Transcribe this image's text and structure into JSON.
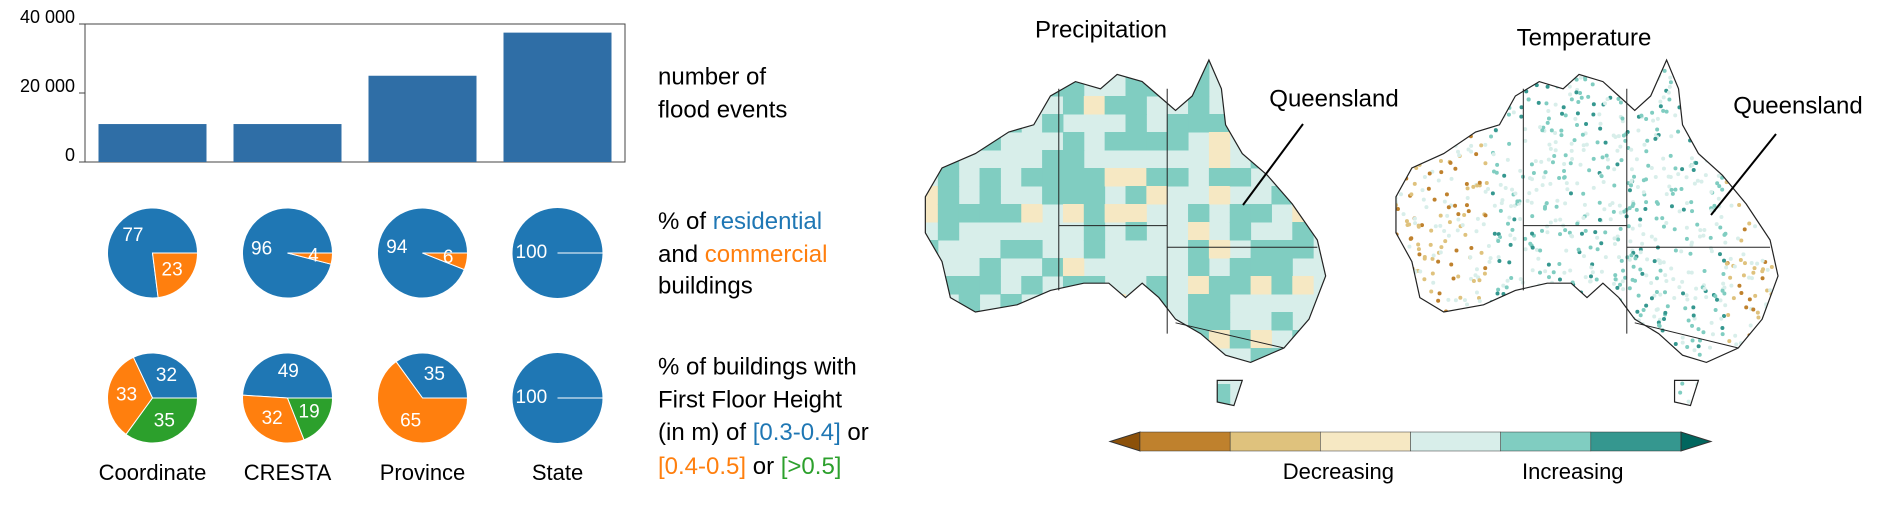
{
  "chart_data": [
    {
      "type": "bar",
      "categories": [
        "Coordinate",
        "CRESTA",
        "Province",
        "State"
      ],
      "values": [
        11000,
        11000,
        25000,
        37500
      ],
      "color": "#2f6ea6",
      "ylim": [
        0,
        40000
      ],
      "yticks": [
        0,
        {
          "value": 20000,
          "label": "20 000"
        },
        {
          "value": 40000,
          "label": "40 000"
        }
      ],
      "caption": [
        "number of",
        "flood events"
      ]
    },
    {
      "type": "pie",
      "series": [
        {
          "name": "residential",
          "color": "#1f77b4"
        },
        {
          "name": "commercial",
          "color": "#ff7f0e"
        }
      ],
      "values": [
        [
          77,
          23
        ],
        [
          96,
          4
        ],
        [
          94,
          6
        ],
        [
          100,
          null
        ]
      ],
      "caption": [
        "% of",
        "and",
        "buildings"
      ]
    },
    {
      "type": "pie",
      "series": [
        {
          "name": "[0.3-0.4]",
          "color": "#1f77b4"
        },
        {
          "name": "[0.4-0.5]",
          "color": "#ff7f0e"
        },
        {
          "name": "[>0.5]",
          "color": "#2ca02c"
        }
      ],
      "values": [
        [
          32,
          33,
          35
        ],
        [
          49,
          32,
          19
        ],
        [
          35,
          65,
          null
        ],
        [
          100,
          null,
          null
        ]
      ],
      "caption": [
        "% of buildings with",
        "First Floor Height",
        "(in m) of",
        "or",
        "or"
      ]
    },
    {
      "type": "map",
      "panels": [
        {
          "title": "Precipitation",
          "annotation": "Queensland"
        },
        {
          "title": "Temperature",
          "annotation": "Queensland"
        }
      ],
      "colorbar": {
        "colors": [
          "#8c510a",
          "#bf812d",
          "#dfc27d",
          "#f6e8c3",
          "#d8eeea",
          "#80cdc1",
          "#35978f",
          "#01665e"
        ],
        "labels": [
          "Decreasing",
          "Increasing"
        ]
      }
    }
  ]
}
